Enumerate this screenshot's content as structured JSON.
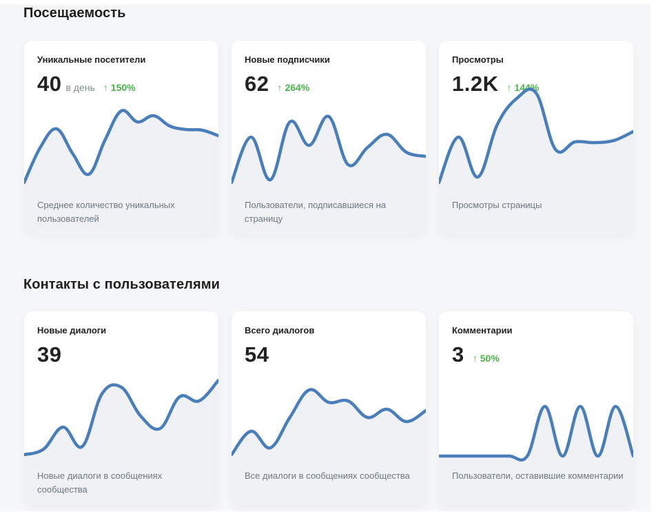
{
  "sections": [
    {
      "title": "Посещаемость",
      "cards": [
        {
          "title": "Уникальные посетители",
          "value": "40",
          "suffix": "в день",
          "change": "150%",
          "description": "Среднее количество уникальных пользователей",
          "trend": [
            4,
            55,
            82,
            46,
            16,
            66,
            108,
            92,
            101,
            86,
            81,
            80,
            72
          ]
        },
        {
          "title": "Новые подписчики",
          "value": "62",
          "suffix": "",
          "change": "264%",
          "description": "Пользователи, подписавшиеся на страницу",
          "trend": [
            4,
            70,
            8,
            92,
            58,
            100,
            30,
            55,
            74,
            48,
            42
          ]
        },
        {
          "title": "Просмотры",
          "value": "1.2K",
          "suffix": "",
          "change": "144%",
          "description": "Просмотры страницы",
          "trend": [
            4,
            70,
            12,
            88,
            126,
            134,
            52,
            63,
            62,
            65,
            78
          ]
        }
      ]
    },
    {
      "title": "Контакты с пользователями",
      "cards": [
        {
          "title": "Новые диалоги",
          "value": "39",
          "suffix": "",
          "change": "",
          "description": "Новые диалоги в сообщениях сообщества",
          "trend": [
            2,
            10,
            42,
            14,
            90,
            100,
            58,
            40,
            86,
            80,
            110
          ]
        },
        {
          "title": "Всего диалогов",
          "value": "54",
          "suffix": "",
          "change": "",
          "description": "Все диалоги в сообщениях сообщества",
          "trend": [
            2,
            36,
            12,
            56,
            96,
            78,
            80,
            56,
            68,
            50,
            66
          ]
        },
        {
          "title": "Комментарии",
          "value": "3",
          "suffix": "",
          "change": "50%",
          "description": "Пользователи, оставившие комментарии",
          "trend": [
            0,
            0,
            0,
            0,
            0,
            0,
            72,
            0,
            72,
            0,
            72,
            0
          ]
        }
      ]
    }
  ]
}
